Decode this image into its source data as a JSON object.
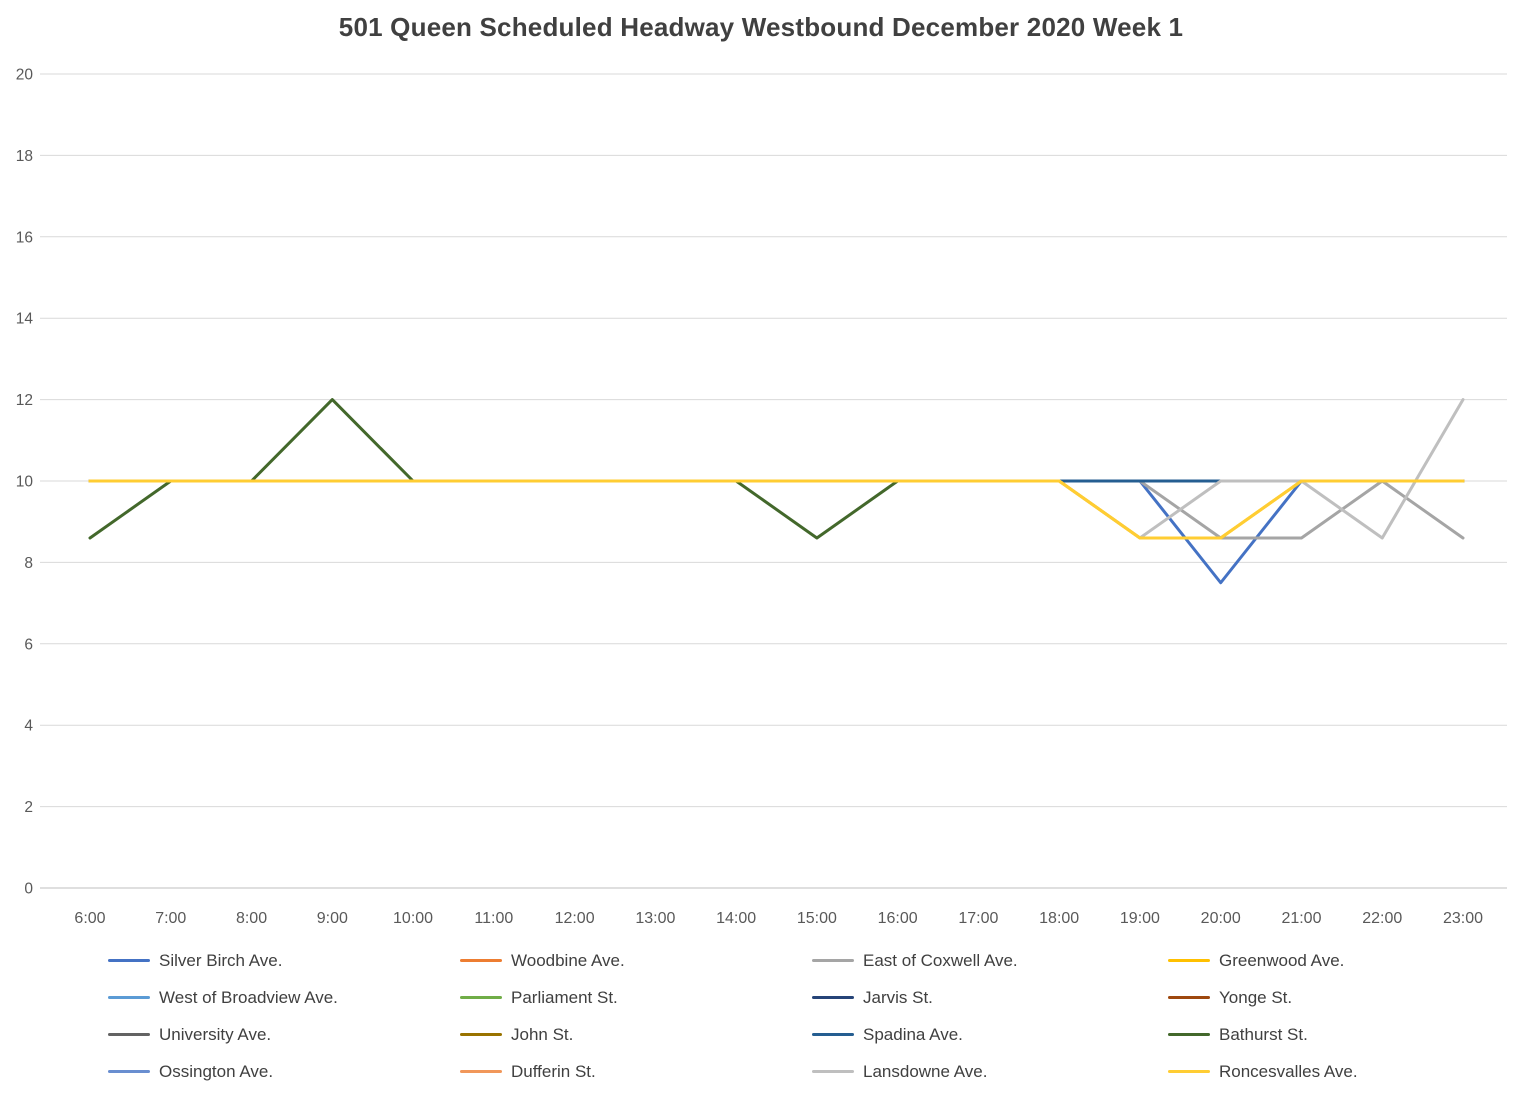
{
  "chart_data": {
    "type": "line",
    "title": "501 Queen  Scheduled Headway Westbound December 2020 Week 1",
    "xlabel": "",
    "ylabel": "",
    "ylim": [
      0,
      20
    ],
    "y_ticks": [
      0,
      2,
      4,
      6,
      8,
      10,
      12,
      14,
      16,
      18,
      20
    ],
    "grid": true,
    "legend_position": "bottom",
    "x_categories": [
      "6:00",
      "7:00",
      "8:00",
      "9:00",
      "10:00",
      "11:00",
      "12:00",
      "13:00",
      "14:00",
      "15:00",
      "16:00",
      "17:00",
      "18:00",
      "19:00",
      "20:00",
      "21:00",
      "22:00",
      "23:00"
    ],
    "series": [
      {
        "name": "Silver Birch Ave.",
        "color": "#4472C4",
        "values": [
          10,
          10,
          10,
          10,
          10,
          10,
          10,
          10,
          10,
          10,
          10,
          10,
          10,
          10,
          7.5,
          10,
          10,
          10
        ]
      },
      {
        "name": "Woodbine Ave.",
        "color": "#ED7D31",
        "values": [
          10,
          10,
          10,
          10,
          10,
          10,
          10,
          10,
          10,
          10,
          10,
          10,
          10,
          10,
          10,
          10,
          10,
          10
        ]
      },
      {
        "name": "East of Coxwell Ave.",
        "color": "#A5A5A5",
        "values": [
          10,
          10,
          10,
          10,
          10,
          10,
          10,
          10,
          10,
          10,
          10,
          10,
          10,
          10,
          8.6,
          8.6,
          10,
          8.6
        ]
      },
      {
        "name": "Greenwood Ave.",
        "color": "#FFC000",
        "values": [
          10,
          10,
          10,
          10,
          10,
          10,
          10,
          10,
          10,
          10,
          10,
          10,
          10,
          8.6,
          8.6,
          10,
          10,
          10
        ]
      },
      {
        "name": "West of Broadview Ave.",
        "color": "#5B9BD5",
        "values": [
          10,
          10,
          10,
          10,
          10,
          10,
          10,
          10,
          10,
          10,
          10,
          10,
          10,
          10,
          10,
          10,
          10,
          10
        ]
      },
      {
        "name": "Parliament St.",
        "color": "#70AD47",
        "values": [
          10,
          10,
          10,
          10,
          10,
          10,
          10,
          10,
          10,
          10,
          10,
          10,
          10,
          10,
          10,
          10,
          10,
          10
        ]
      },
      {
        "name": "Jarvis St.",
        "color": "#264478",
        "values": [
          10,
          10,
          10,
          10,
          10,
          10,
          10,
          10,
          10,
          10,
          10,
          10,
          10,
          10,
          10,
          10,
          10,
          10
        ]
      },
      {
        "name": "Yonge St.",
        "color": "#9E480E",
        "values": [
          10,
          10,
          10,
          10,
          10,
          10,
          10,
          10,
          10,
          10,
          10,
          10,
          10,
          10,
          10,
          10,
          10,
          10
        ]
      },
      {
        "name": "University Ave.",
        "color": "#636363",
        "values": [
          10,
          10,
          10,
          10,
          10,
          10,
          10,
          10,
          10,
          10,
          10,
          10,
          10,
          10,
          10,
          10,
          10,
          10
        ]
      },
      {
        "name": "John St.",
        "color": "#997300",
        "values": [
          10,
          10,
          10,
          10,
          10,
          10,
          10,
          10,
          10,
          10,
          10,
          10,
          10,
          10,
          10,
          10,
          10,
          10
        ]
      },
      {
        "name": "Spadina Ave.",
        "color": "#255E91",
        "values": [
          10,
          10,
          10,
          10,
          10,
          10,
          10,
          10,
          10,
          10,
          10,
          10,
          10,
          10,
          10,
          10,
          10,
          10
        ]
      },
      {
        "name": "Bathurst St.",
        "color": "#43682B",
        "values": [
          8.6,
          10,
          10,
          12,
          10,
          10,
          10,
          10,
          10,
          8.6,
          10,
          10,
          10,
          10,
          10,
          10,
          10,
          10
        ]
      },
      {
        "name": "Ossington Ave.",
        "color": "#698ED0",
        "values": [
          10,
          10,
          10,
          10,
          10,
          10,
          10,
          10,
          10,
          10,
          10,
          10,
          10,
          10,
          10,
          10,
          10,
          10
        ]
      },
      {
        "name": "Dufferin St.",
        "color": "#F1975A",
        "values": [
          10,
          10,
          10,
          10,
          10,
          10,
          10,
          10,
          10,
          10,
          10,
          10,
          10,
          10,
          10,
          10,
          10,
          10
        ]
      },
      {
        "name": "Lansdowne Ave.",
        "color": "#BFBFBF",
        "values": [
          10,
          10,
          10,
          10,
          10,
          10,
          10,
          10,
          10,
          10,
          10,
          10,
          10,
          8.6,
          10,
          10,
          8.6,
          12
        ]
      },
      {
        "name": "Roncesvalles Ave.",
        "color": "#FFCD33",
        "values": [
          10,
          10,
          10,
          10,
          10,
          10,
          10,
          10,
          10,
          10,
          10,
          10,
          10,
          8.6,
          8.6,
          10,
          10,
          10
        ]
      }
    ],
    "draw_order": [
      1,
      4,
      5,
      6,
      7,
      8,
      9,
      12,
      13,
      0,
      2,
      11,
      10,
      14,
      3,
      15
    ],
    "axis_text_color": "#595959",
    "gridline_color": "#D9D9D9",
    "axis_line_color": "#BFBFBF"
  }
}
